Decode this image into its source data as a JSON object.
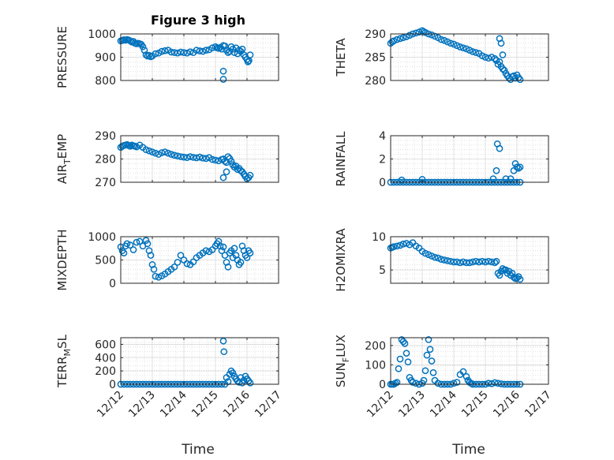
{
  "figure": {
    "title": "Figure 3 high",
    "xlabel": "Time"
  },
  "colors": {
    "marker": "#0072bd",
    "axis": "#262626",
    "grid": "#d9d9d9"
  },
  "chart_data": [
    {
      "id": "pressure",
      "type": "scatter",
      "marker": "circle",
      "ylabel": "PRESSURE",
      "ylim": [
        800,
        1000
      ],
      "yticks": [
        800,
        900,
        1000
      ],
      "xlim": [
        "12/12",
        "12/17"
      ],
      "xtick_labels": [
        "12/12",
        "12/13",
        "12/14",
        "12/15",
        "12/16",
        "12/17"
      ],
      "grid": true,
      "x": [
        0.0,
        0.05,
        0.1,
        0.15,
        0.2,
        0.25,
        0.3,
        0.35,
        0.4,
        0.45,
        0.5,
        0.55,
        0.6,
        0.65,
        0.7,
        0.75,
        0.8,
        0.85,
        0.9,
        0.95,
        1.0,
        1.1,
        1.2,
        1.3,
        1.4,
        1.5,
        1.6,
        1.7,
        1.8,
        1.9,
        2.0,
        2.1,
        2.2,
        2.3,
        2.4,
        2.5,
        2.6,
        2.7,
        2.8,
        2.9,
        3.0,
        3.05,
        3.1,
        3.15,
        3.2,
        3.25,
        3.3,
        3.35,
        3.4,
        3.45,
        3.5,
        3.55,
        3.6,
        3.65,
        3.7,
        3.75,
        3.8,
        3.85,
        3.9,
        3.95,
        4.0,
        4.03,
        4.06,
        4.1,
        3.25,
        3.25
      ],
      "y": [
        970,
        972,
        975,
        973,
        976,
        974,
        970,
        965,
        968,
        960,
        958,
        960,
        958,
        955,
        945,
        930,
        910,
        905,
        908,
        902,
        905,
        915,
        918,
        925,
        928,
        930,
        922,
        920,
        918,
        922,
        920,
        918,
        923,
        920,
        930,
        927,
        925,
        930,
        932,
        940,
        945,
        940,
        938,
        942,
        935,
        950,
        948,
        930,
        920,
        925,
        945,
        935,
        920,
        940,
        915,
        930,
        925,
        935,
        910,
        900,
        890,
        880,
        885,
        910,
        840,
        805
      ]
    },
    {
      "id": "theta",
      "type": "scatter",
      "marker": "circle",
      "ylabel": "THETA",
      "ylim": [
        280,
        290
      ],
      "yticks": [
        280,
        285,
        290
      ],
      "xlim": [
        "12/12",
        "12/17"
      ],
      "xtick_labels": [
        "12/12",
        "12/13",
        "12/14",
        "12/15",
        "12/16",
        "12/17"
      ],
      "grid": true,
      "x": [
        0.0,
        0.05,
        0.1,
        0.2,
        0.3,
        0.4,
        0.5,
        0.6,
        0.7,
        0.8,
        0.9,
        1.0,
        1.05,
        1.1,
        1.2,
        1.3,
        1.4,
        1.5,
        1.6,
        1.7,
        1.8,
        1.9,
        2.0,
        2.1,
        2.2,
        2.3,
        2.4,
        2.5,
        2.6,
        2.7,
        2.8,
        2.9,
        3.0,
        3.1,
        3.2,
        3.3,
        3.35,
        3.4,
        3.45,
        3.5,
        3.55,
        3.6,
        3.65,
        3.7,
        3.75,
        3.8,
        3.85,
        3.9,
        3.95,
        4.0,
        4.05,
        4.1,
        3.45,
        3.5,
        3.55
      ],
      "y": [
        288,
        288.3,
        288.5,
        288.8,
        289,
        289.2,
        289.4,
        289.7,
        290,
        290.2,
        290.4,
        290.7,
        290.5,
        290.3,
        290,
        289.8,
        289.5,
        289.2,
        288.8,
        288.6,
        288.3,
        288,
        287.8,
        287.5,
        287.2,
        287,
        286.8,
        286.5,
        286.2,
        286,
        285.8,
        285.3,
        285,
        284.8,
        285,
        284.7,
        284.3,
        283.5,
        284,
        283,
        282.5,
        282.2,
        281.5,
        281,
        280.5,
        280.2,
        280.8,
        281,
        280.5,
        281.2,
        280.6,
        280.2,
        289,
        288,
        285.5
      ]
    },
    {
      "id": "air_temp",
      "type": "scatter",
      "marker": "circle",
      "ylabel": "AIR_TEMP",
      "ylabel_parts": [
        "AIR",
        "T",
        "EMP"
      ],
      "ylim": [
        270,
        290
      ],
      "yticks": [
        270,
        280,
        290
      ],
      "xlim": [
        "12/12",
        "12/17"
      ],
      "xtick_labels": [
        "12/12",
        "12/13",
        "12/14",
        "12/15",
        "12/16",
        "12/17"
      ],
      "grid": true,
      "x": [
        0.0,
        0.05,
        0.1,
        0.15,
        0.2,
        0.25,
        0.3,
        0.35,
        0.4,
        0.45,
        0.5,
        0.6,
        0.7,
        0.8,
        0.9,
        1.0,
        1.1,
        1.2,
        1.3,
        1.4,
        1.5,
        1.6,
        1.7,
        1.8,
        1.9,
        2.0,
        2.1,
        2.2,
        2.3,
        2.4,
        2.5,
        2.6,
        2.7,
        2.8,
        2.9,
        3.0,
        3.1,
        3.2,
        3.25,
        3.3,
        3.35,
        3.4,
        3.45,
        3.5,
        3.55,
        3.6,
        3.65,
        3.7,
        3.75,
        3.8,
        3.85,
        3.9,
        3.95,
        4.0,
        4.05,
        4.1,
        3.25,
        3.35
      ],
      "y": [
        285,
        285.5,
        285.8,
        286,
        286.2,
        285.8,
        285.5,
        286,
        285.7,
        285.5,
        285.2,
        286,
        285,
        284,
        283.5,
        283,
        282.5,
        282,
        282.7,
        283,
        282.5,
        282,
        281.6,
        281.3,
        281,
        280.8,
        280.6,
        281,
        280.7,
        280.5,
        280.8,
        280.4,
        280.2,
        280.6,
        279.8,
        279.5,
        279.2,
        279.8,
        280,
        279,
        278.5,
        281,
        280.2,
        279,
        277.5,
        276.5,
        277,
        275.5,
        276,
        275,
        274.5,
        273.5,
        272.5,
        271.5,
        272,
        273,
        272,
        274.5
      ]
    },
    {
      "id": "rainfall",
      "type": "scatter",
      "marker": "circle",
      "ylabel": "RAINFALL",
      "ylim": [
        0,
        4
      ],
      "yticks": [
        0,
        2,
        4
      ],
      "xlim": [
        "12/12",
        "12/17"
      ],
      "xtick_labels": [
        "12/12",
        "12/13",
        "12/14",
        "12/15",
        "12/16",
        "12/17"
      ],
      "grid": true,
      "x": [
        0.0,
        0.1,
        0.2,
        0.3,
        0.4,
        0.5,
        0.6,
        0.7,
        0.8,
        0.9,
        1.0,
        1.1,
        1.2,
        1.3,
        1.4,
        1.5,
        1.6,
        1.7,
        1.8,
        1.9,
        2.0,
        2.1,
        2.2,
        2.3,
        2.4,
        2.5,
        2.6,
        2.7,
        2.8,
        2.9,
        3.0,
        3.1,
        3.2,
        3.3,
        3.4,
        3.5,
        3.6,
        3.7,
        3.8,
        3.9,
        4.0,
        4.1,
        0.35,
        1.0,
        3.25,
        3.35,
        3.38,
        3.45,
        3.65,
        3.8,
        3.9,
        3.95,
        4.0,
        4.05,
        4.1
      ],
      "y": [
        0,
        0,
        0,
        0,
        0,
        0,
        0,
        0,
        0,
        0,
        0,
        0,
        0,
        0,
        0,
        0,
        0,
        0,
        0,
        0,
        0,
        0,
        0,
        0,
        0,
        0,
        0,
        0,
        0,
        0,
        0,
        0,
        0,
        0,
        0,
        0,
        0,
        0,
        0,
        0,
        0,
        0,
        0.2,
        0.25,
        0.3,
        1.0,
        3.3,
        2.9,
        0.3,
        0.3,
        1.0,
        1.6,
        1.3,
        1.2,
        1.3
      ]
    },
    {
      "id": "mixdepth",
      "type": "scatter",
      "marker": "circle",
      "ylabel": "MIXDEPTH",
      "ylim": [
        0,
        1000
      ],
      "yticks": [
        0,
        500,
        1000
      ],
      "xlim": [
        "12/12",
        "12/17"
      ],
      "xtick_labels": [
        "12/12",
        "12/13",
        "12/14",
        "12/15",
        "12/16",
        "12/17"
      ],
      "grid": true,
      "x": [
        0.0,
        0.05,
        0.1,
        0.15,
        0.2,
        0.3,
        0.4,
        0.5,
        0.6,
        0.7,
        0.8,
        0.85,
        0.9,
        0.95,
        1.0,
        1.05,
        1.1,
        1.2,
        1.3,
        1.4,
        1.5,
        1.6,
        1.7,
        1.8,
        1.9,
        2.0,
        2.1,
        2.2,
        2.3,
        2.4,
        2.5,
        2.6,
        2.7,
        2.8,
        2.9,
        3.0,
        3.05,
        3.1,
        3.15,
        3.2,
        3.25,
        3.3,
        3.35,
        3.4,
        3.45,
        3.5,
        3.55,
        3.6,
        3.65,
        3.7,
        3.75,
        3.8,
        3.85,
        3.9,
        3.95,
        4.0,
        4.05,
        4.1
      ],
      "y": [
        780,
        700,
        650,
        800,
        850,
        820,
        720,
        880,
        900,
        800,
        920,
        850,
        700,
        600,
        400,
        300,
        150,
        130,
        160,
        200,
        250,
        300,
        350,
        450,
        600,
        500,
        420,
        400,
        460,
        550,
        600,
        650,
        700,
        680,
        720,
        800,
        850,
        900,
        800,
        700,
        780,
        600,
        450,
        350,
        650,
        700,
        550,
        750,
        600,
        500,
        400,
        450,
        800,
        700,
        600,
        550,
        700,
        650
      ]
    },
    {
      "id": "h2omixra",
      "type": "scatter",
      "marker": "circle",
      "ylabel": "H2OMIXRA",
      "ylim": [
        3,
        10
      ],
      "yticks": [
        5,
        10
      ],
      "xlim": [
        "12/12",
        "12/17"
      ],
      "xtick_labels": [
        "12/12",
        "12/13",
        "12/14",
        "12/15",
        "12/16",
        "12/17"
      ],
      "grid": true,
      "x": [
        0.0,
        0.05,
        0.1,
        0.2,
        0.3,
        0.4,
        0.5,
        0.6,
        0.7,
        0.8,
        0.9,
        1.0,
        1.1,
        1.2,
        1.3,
        1.4,
        1.5,
        1.6,
        1.7,
        1.8,
        1.9,
        2.0,
        2.1,
        2.2,
        2.3,
        2.4,
        2.5,
        2.6,
        2.7,
        2.8,
        2.9,
        3.0,
        3.1,
        3.2,
        3.3,
        3.35,
        3.4,
        3.45,
        3.5,
        3.55,
        3.6,
        3.65,
        3.7,
        3.75,
        3.8,
        3.85,
        3.9,
        3.95,
        4.0,
        4.05,
        4.1
      ],
      "y": [
        8.3,
        8.4,
        8.5,
        8.6,
        8.7,
        8.9,
        9.0,
        8.8,
        9.1,
        8.6,
        8.3,
        7.8,
        7.5,
        7.3,
        7.1,
        6.9,
        6.8,
        6.6,
        6.5,
        6.4,
        6.3,
        6.2,
        6.2,
        6.1,
        6.2,
        6.1,
        6.1,
        6.2,
        6.3,
        6.2,
        6.3,
        6.2,
        6.3,
        6.2,
        6.1,
        6.3,
        4.5,
        4.2,
        4.8,
        5.2,
        5.0,
        5.0,
        4.5,
        4.8,
        4.2,
        4.5,
        3.9,
        3.7,
        3.8,
        4.0,
        3.6
      ]
    },
    {
      "id": "terr_msl",
      "type": "scatter",
      "marker": "circle",
      "ylabel": "TERR_MSL",
      "ylabel_parts": [
        "TERR",
        "M",
        "SL"
      ],
      "ylim": [
        0,
        700
      ],
      "yticks": [
        0,
        200,
        400,
        600
      ],
      "xlim": [
        "12/12",
        "12/17"
      ],
      "xtick_labels": [
        "12/12",
        "12/13",
        "12/14",
        "12/15",
        "12/16",
        "12/17"
      ],
      "grid": true,
      "x": [
        0.0,
        0.1,
        0.2,
        0.3,
        0.4,
        0.5,
        0.6,
        0.7,
        0.8,
        0.9,
        1.0,
        1.1,
        1.2,
        1.3,
        1.4,
        1.5,
        1.6,
        1.7,
        1.8,
        1.9,
        2.0,
        2.1,
        2.2,
        2.3,
        2.4,
        2.5,
        2.6,
        2.7,
        2.8,
        2.9,
        3.0,
        3.1,
        3.2,
        3.3,
        3.25,
        3.27,
        3.35,
        3.4,
        3.45,
        3.5,
        3.55,
        3.6,
        3.65,
        3.7,
        3.75,
        3.8,
        3.85,
        3.9,
        3.95,
        4.0,
        4.05,
        4.1
      ],
      "y": [
        0,
        0,
        0,
        0,
        0,
        0,
        0,
        0,
        0,
        0,
        0,
        0,
        0,
        0,
        0,
        0,
        0,
        0,
        0,
        0,
        0,
        0,
        0,
        0,
        0,
        0,
        0,
        0,
        0,
        0,
        0,
        0,
        0,
        0,
        650,
        490,
        100,
        40,
        150,
        200,
        170,
        120,
        80,
        50,
        30,
        100,
        20,
        60,
        120,
        80,
        50,
        20
      ]
    },
    {
      "id": "sun_flux",
      "type": "scatter",
      "marker": "circle",
      "ylabel": "SUN_FLUX",
      "ylabel_parts": [
        "SUN",
        "F",
        "LUX"
      ],
      "ylim": [
        0,
        240
      ],
      "yticks": [
        0,
        100,
        200
      ],
      "xlim": [
        "12/12",
        "12/17"
      ],
      "xtick_labels": [
        "12/12",
        "12/13",
        "12/14",
        "12/15",
        "12/16",
        "12/17"
      ],
      "grid": true,
      "x": [
        0.0,
        0.05,
        0.1,
        0.15,
        0.2,
        0.25,
        0.3,
        0.35,
        0.4,
        0.45,
        0.5,
        0.55,
        0.6,
        0.65,
        0.7,
        0.8,
        0.9,
        1.0,
        1.05,
        1.1,
        1.15,
        1.2,
        1.25,
        1.3,
        1.35,
        1.4,
        1.5,
        1.6,
        1.7,
        1.8,
        1.9,
        2.0,
        2.1,
        2.2,
        2.3,
        2.4,
        2.45,
        2.5,
        2.55,
        2.6,
        2.7,
        2.8,
        2.9,
        3.0,
        3.1,
        3.2,
        3.3,
        3.4,
        3.5,
        3.6,
        3.7,
        3.8,
        3.9,
        4.0,
        4.1
      ],
      "y": [
        0,
        0,
        0,
        5,
        10,
        80,
        130,
        230,
        220,
        210,
        160,
        115,
        35,
        20,
        10,
        5,
        0,
        5,
        20,
        70,
        150,
        230,
        180,
        120,
        60,
        20,
        5,
        0,
        0,
        0,
        0,
        5,
        10,
        50,
        65,
        40,
        20,
        10,
        5,
        0,
        0,
        0,
        0,
        0,
        5,
        3,
        8,
        5,
        2,
        0,
        0,
        0,
        0,
        0,
        0
      ]
    }
  ]
}
